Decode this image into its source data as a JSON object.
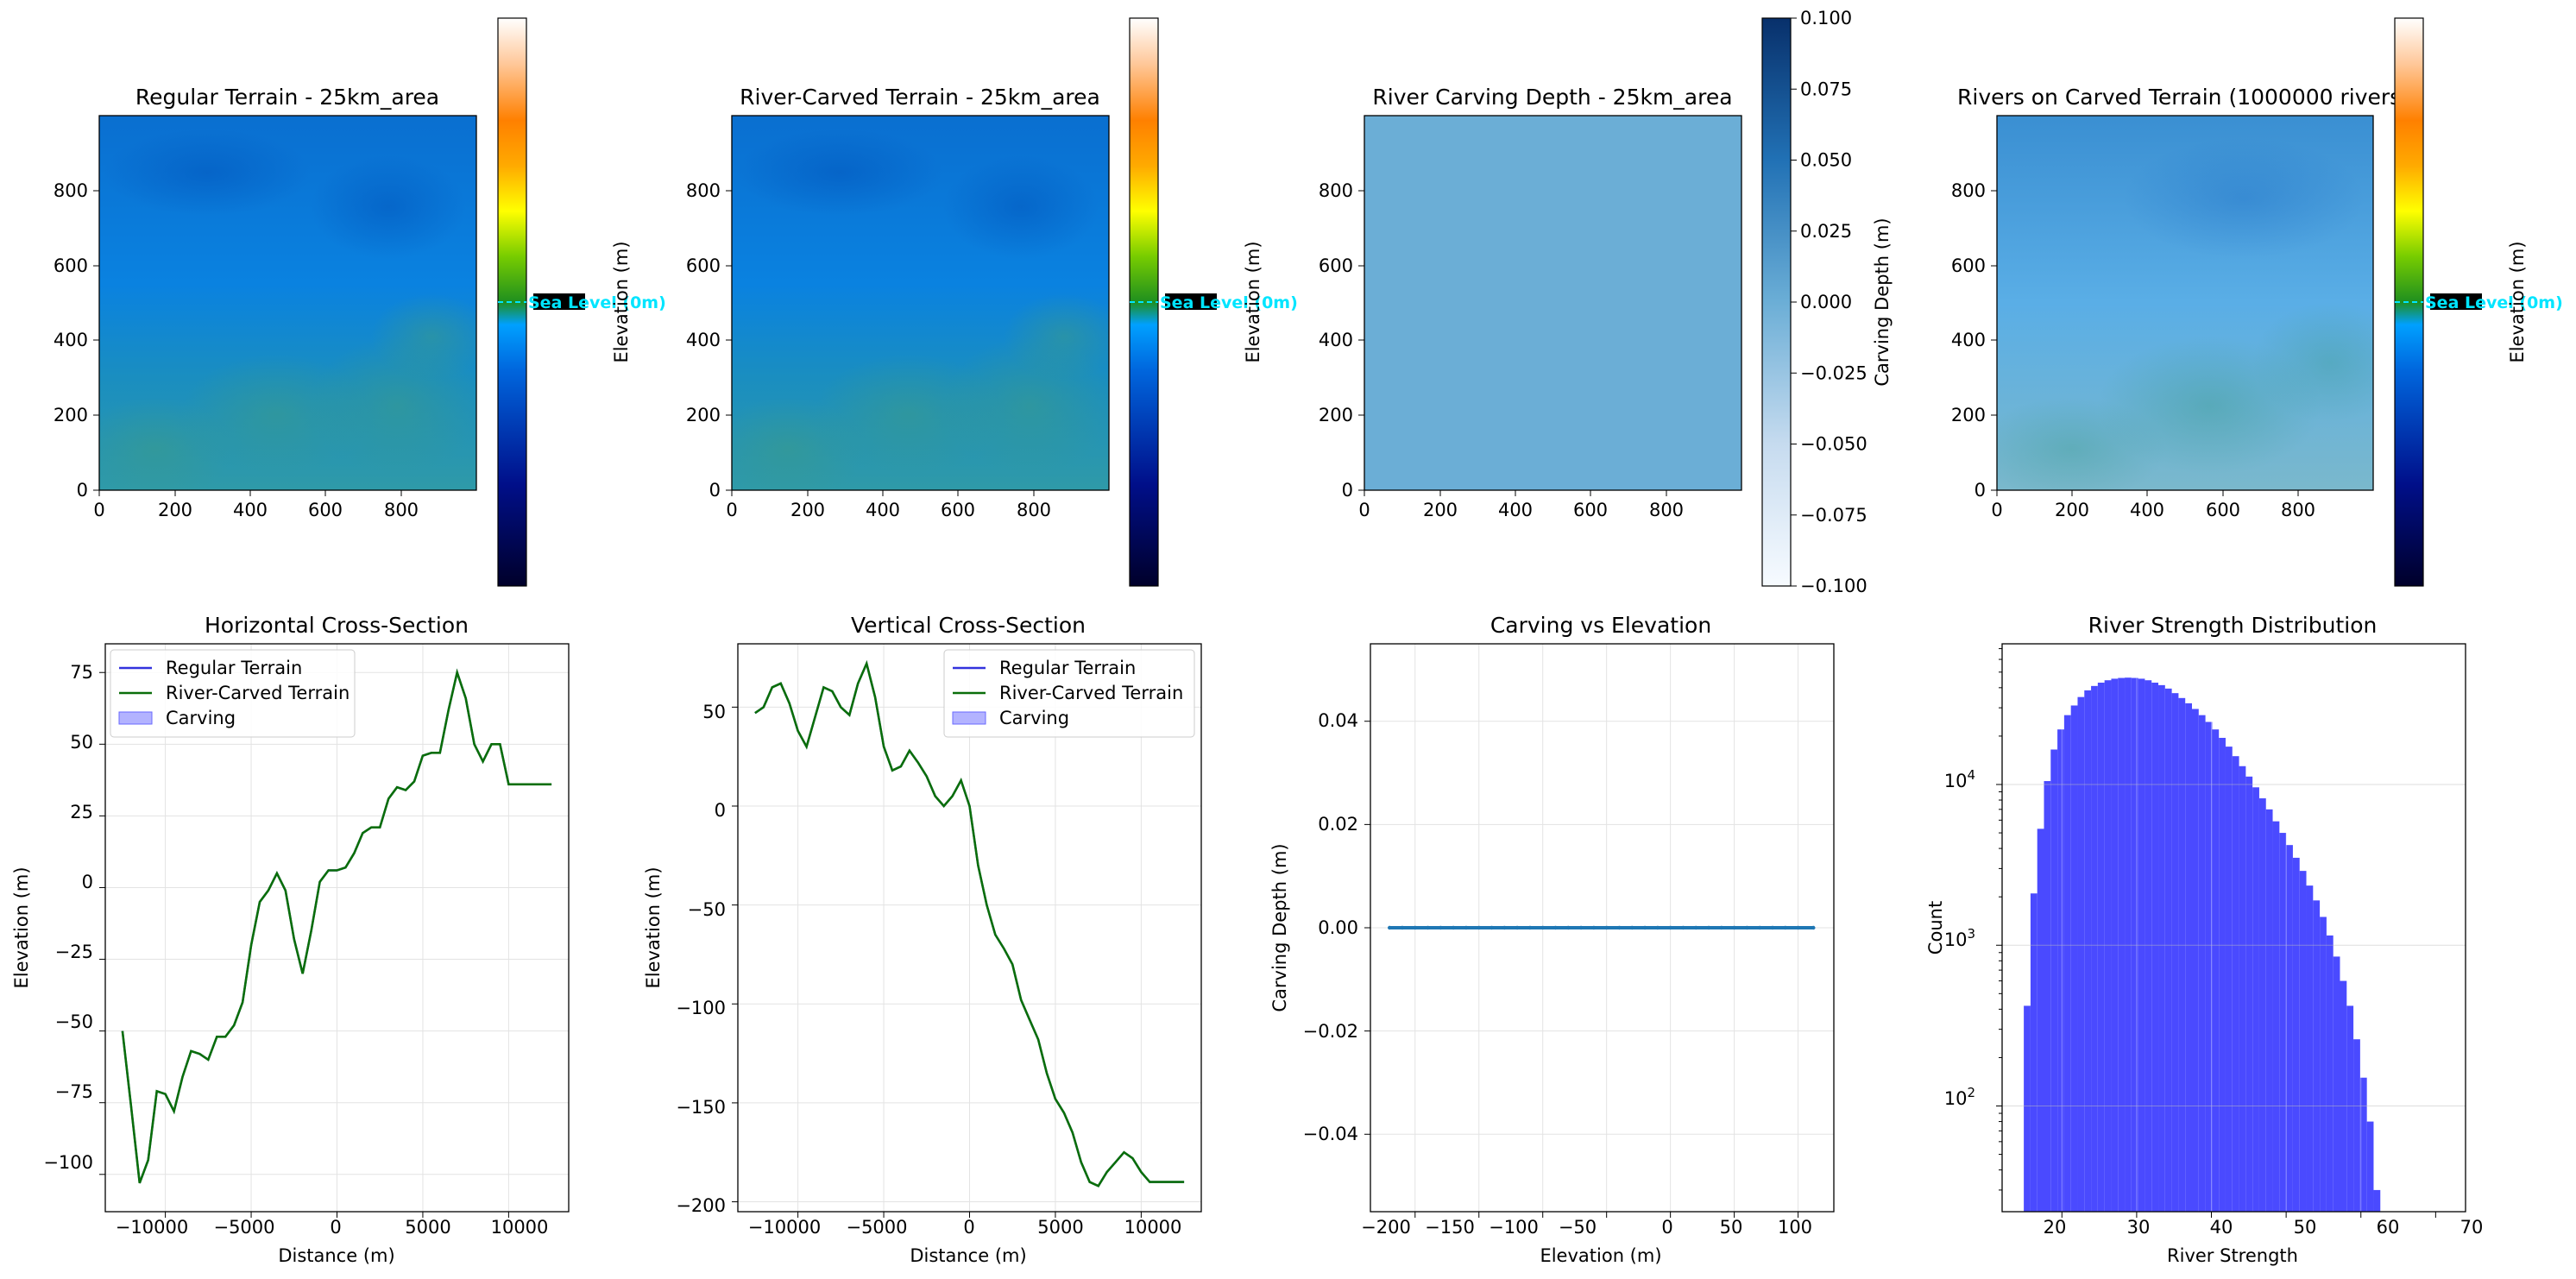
{
  "figure": {
    "background": "#ffffff"
  },
  "panels": {
    "regular_terrain": {
      "title": "Regular Terrain - 25km_area",
      "x_ticks": [
        "0",
        "200",
        "400",
        "600",
        "800"
      ],
      "y_ticks": [
        "0",
        "200",
        "400",
        "600",
        "800"
      ],
      "colorbar_label": "Elevation (m)",
      "sea_level_label": "Sea Level (0m)",
      "colors": {
        "top": "#0a6fd0",
        "bottom": "#2f9aa8"
      }
    },
    "river_carved_terrain": {
      "title": "River-Carved Terrain - 25km_area",
      "x_ticks": [
        "0",
        "200",
        "400",
        "600",
        "800"
      ],
      "y_ticks": [
        "0",
        "200",
        "400",
        "600",
        "800"
      ],
      "colorbar_label": "Elevation (m)",
      "sea_level_label": "Sea Level (0m)",
      "colors": {
        "top": "#0a6fd0",
        "bottom": "#2f9aa8"
      }
    },
    "carving_depth": {
      "title": "River Carving Depth - 25km_area",
      "x_ticks": [
        "0",
        "200",
        "400",
        "600",
        "800"
      ],
      "y_ticks": [
        "0",
        "200",
        "400",
        "600",
        "800"
      ],
      "colorbar_label": "Carving Depth (m)",
      "colorbar_ticks": [
        "0.100",
        "0.075",
        "0.050",
        "0.025",
        "0.000",
        "−0.025",
        "−0.050",
        "−0.075",
        "−0.100"
      ],
      "colors": {
        "fill": "#6baed6",
        "cmap_top": "#08306b",
        "cmap_bottom": "#f7fbff"
      }
    },
    "rivers_on_carved": {
      "title": "Rivers on Carved Terrain (1000000 rivers",
      "x_ticks": [
        "0",
        "200",
        "400",
        "600",
        "800"
      ],
      "y_ticks": [
        "0",
        "200",
        "400",
        "600",
        "800"
      ],
      "colorbar_label": "Elevation (m)",
      "sea_level_label": "Sea Level (0m)",
      "colors": {
        "top": "#3a8fd2",
        "bottom": "#7ab8cc"
      }
    },
    "horizontal_cross_section": {
      "title": "Horizontal Cross-Section",
      "xlabel": "Distance (m)",
      "ylabel": "Elevation (m)",
      "x_ticks": [
        "−10000",
        "−5000",
        "0",
        "5000",
        "10000"
      ],
      "y_ticks": [
        "75",
        "50",
        "25",
        "0",
        "−25",
        "−50",
        "−75",
        "−100"
      ],
      "legend": [
        "Regular Terrain",
        "River-Carved Terrain",
        "Carving"
      ]
    },
    "vertical_cross_section": {
      "title": "Vertical Cross-Section",
      "xlabel": "Distance (m)",
      "ylabel": "Elevation (m)",
      "x_ticks": [
        "−10000",
        "−5000",
        "0",
        "5000",
        "10000"
      ],
      "y_ticks": [
        "50",
        "0",
        "−50",
        "−100",
        "−150",
        "−200"
      ],
      "legend": [
        "Regular Terrain",
        "River-Carved Terrain",
        "Carving"
      ]
    },
    "carving_vs_elevation": {
      "title": "Carving vs Elevation",
      "xlabel": "Elevation (m)",
      "ylabel": "Carving Depth (m)",
      "x_ticks": [
        "−200",
        "−150",
        "−100",
        "−50",
        "0",
        "50",
        "100"
      ],
      "y_ticks": [
        "0.04",
        "0.02",
        "0.00",
        "−0.02",
        "−0.04"
      ]
    },
    "river_strength": {
      "title": "River Strength Distribution",
      "xlabel": "River Strength",
      "ylabel": "Count",
      "x_ticks": [
        "20",
        "30",
        "40",
        "50",
        "60",
        "70"
      ],
      "y_ticks": [
        "10",
        "10",
        "10"
      ],
      "y_tick_exponents": [
        "4",
        "3",
        "2"
      ]
    }
  },
  "colors": {
    "regular_line": "#3333dd",
    "carved_line": "#0a6e0a",
    "carving_fill": "#b3b3ff",
    "scatter": "#1f77b4",
    "histogram": "#4a4aff",
    "sea_level": "#00e5ff",
    "grid": "#e3e3e3"
  },
  "chart_data": [
    {
      "type": "heatmap",
      "title": "Regular Terrain - 25km_area",
      "xlim": [
        0,
        1000
      ],
      "ylim": [
        0,
        1000
      ],
      "colorbar": {
        "label": "Elevation (m)",
        "annotation": "Sea Level (0m)"
      }
    },
    {
      "type": "heatmap",
      "title": "River-Carved Terrain - 25km_area",
      "xlim": [
        0,
        1000
      ],
      "ylim": [
        0,
        1000
      ],
      "colorbar": {
        "label": "Elevation (m)",
        "annotation": "Sea Level (0m)"
      }
    },
    {
      "type": "heatmap",
      "title": "River Carving Depth - 25km_area",
      "xlim": [
        0,
        1000
      ],
      "ylim": [
        0,
        1000
      ],
      "uniform_value": 0.0,
      "colorbar": {
        "label": "Carving Depth (m)",
        "range": [
          -0.1,
          0.1
        ]
      }
    },
    {
      "type": "heatmap",
      "title": "Rivers on Carved Terrain (1000000 rivers",
      "xlim": [
        0,
        1000
      ],
      "ylim": [
        0,
        1000
      ],
      "colorbar": {
        "label": "Elevation (m)",
        "annotation": "Sea Level (0m)"
      }
    },
    {
      "type": "line",
      "title": "Horizontal Cross-Section",
      "xlabel": "Distance (m)",
      "ylabel": "Elevation (m)",
      "xlim": [
        -13500,
        13500
      ],
      "ylim": [
        -113,
        85
      ],
      "legend_position": "top-left",
      "x": [
        -12500,
        -12000,
        -11500,
        -11000,
        -10500,
        -10000,
        -9500,
        -9000,
        -8500,
        -8000,
        -7500,
        -7000,
        -6500,
        -6000,
        -5500,
        -5000,
        -4500,
        -4000,
        -3500,
        -3000,
        -2500,
        -2000,
        -1500,
        -1000,
        -500,
        0,
        500,
        1000,
        1500,
        2000,
        2500,
        3000,
        3500,
        4000,
        4500,
        5000,
        5500,
        6000,
        6500,
        7000,
        7500,
        8000,
        8500,
        9000,
        9500,
        10000,
        10500,
        11000,
        11500,
        12000,
        12500
      ],
      "series": [
        {
          "name": "Regular Terrain",
          "values": [
            -50,
            -76,
            -103,
            -95,
            -71,
            -72,
            -78,
            -66,
            -57,
            -58,
            -60,
            -52,
            -52,
            -48,
            -40,
            -20,
            -5,
            -1,
            5,
            -1,
            -18,
            -30,
            -15,
            2,
            6,
            6,
            7,
            12,
            19,
            21,
            21,
            31,
            35,
            34,
            37,
            46,
            47,
            47,
            62,
            75,
            66,
            50,
            44,
            50,
            50,
            36,
            36,
            36,
            36,
            36,
            36
          ]
        },
        {
          "name": "River-Carved Terrain",
          "values": [
            -50,
            -76,
            -103,
            -95,
            -71,
            -72,
            -78,
            -66,
            -57,
            -58,
            -60,
            -52,
            -52,
            -48,
            -40,
            -20,
            -5,
            -1,
            5,
            -1,
            -18,
            -30,
            -15,
            2,
            6,
            6,
            7,
            12,
            19,
            21,
            21,
            31,
            35,
            34,
            37,
            46,
            47,
            47,
            62,
            75,
            66,
            50,
            44,
            50,
            50,
            36,
            36,
            36,
            36,
            36,
            36
          ]
        },
        {
          "name": "Carving",
          "values": [
            0,
            0,
            0,
            0,
            0,
            0,
            0,
            0,
            0,
            0,
            0,
            0,
            0,
            0,
            0,
            0,
            0,
            0,
            0,
            0,
            0,
            0,
            0,
            0,
            0,
            0,
            0,
            0,
            0,
            0,
            0,
            0,
            0,
            0,
            0,
            0,
            0,
            0,
            0,
            0,
            0,
            0,
            0,
            0,
            0,
            0,
            0,
            0,
            0,
            0,
            0
          ]
        }
      ]
    },
    {
      "type": "line",
      "title": "Vertical Cross-Section",
      "xlabel": "Distance (m)",
      "ylabel": "Elevation (m)",
      "xlim": [
        -13500,
        13500
      ],
      "ylim": [
        -205,
        82
      ],
      "legend_position": "top-right",
      "x": [
        -12500,
        -12000,
        -11500,
        -11000,
        -10500,
        -10000,
        -9500,
        -9000,
        -8500,
        -8000,
        -7500,
        -7000,
        -6500,
        -6000,
        -5500,
        -5000,
        -4500,
        -4000,
        -3500,
        -3000,
        -2500,
        -2000,
        -1500,
        -1000,
        -500,
        0,
        500,
        1000,
        1500,
        2000,
        2500,
        3000,
        3500,
        4000,
        4500,
        5000,
        5500,
        6000,
        6500,
        7000,
        7500,
        8000,
        8500,
        9000,
        9500,
        10000,
        10500,
        11000,
        11500,
        12000,
        12500
      ],
      "series": [
        {
          "name": "Regular Terrain",
          "values": [
            47,
            50,
            60,
            62,
            52,
            38,
            30,
            45,
            60,
            58,
            50,
            46,
            62,
            72,
            55,
            30,
            18,
            20,
            28,
            22,
            15,
            5,
            0,
            5,
            13,
            0,
            -30,
            -50,
            -65,
            -72,
            -80,
            -98,
            -108,
            -118,
            -135,
            -148,
            -155,
            -165,
            -180,
            -190,
            -192,
            -185,
            -180,
            -175,
            -178,
            -185,
            -190,
            -190,
            -190,
            -190,
            -190
          ]
        },
        {
          "name": "River-Carved Terrain",
          "values": [
            47,
            50,
            60,
            62,
            52,
            38,
            30,
            45,
            60,
            58,
            50,
            46,
            62,
            72,
            55,
            30,
            18,
            20,
            28,
            22,
            15,
            5,
            0,
            5,
            13,
            0,
            -30,
            -50,
            -65,
            -72,
            -80,
            -98,
            -108,
            -118,
            -135,
            -148,
            -155,
            -165,
            -180,
            -190,
            -192,
            -185,
            -180,
            -175,
            -178,
            -185,
            -190,
            -190,
            -190,
            -190,
            -190
          ]
        },
        {
          "name": "Carving",
          "values": [
            0,
            0,
            0,
            0,
            0,
            0,
            0,
            0,
            0,
            0,
            0,
            0,
            0,
            0,
            0,
            0,
            0,
            0,
            0,
            0,
            0,
            0,
            0,
            0,
            0,
            0,
            0,
            0,
            0,
            0,
            0,
            0,
            0,
            0,
            0,
            0,
            0,
            0,
            0,
            0,
            0,
            0,
            0,
            0,
            0,
            0,
            0,
            0,
            0,
            0,
            0
          ]
        }
      ]
    },
    {
      "type": "scatter",
      "title": "Carving vs Elevation",
      "xlabel": "Elevation (m)",
      "ylabel": "Carving Depth (m)",
      "xlim": [
        -235,
        128
      ],
      "ylim": [
        -0.055,
        0.055
      ],
      "x": [
        -220,
        -210,
        -200,
        -190,
        -180,
        -170,
        -160,
        -150,
        -140,
        -130,
        -120,
        -110,
        -100,
        -90,
        -80,
        -70,
        -60,
        -50,
        -40,
        -30,
        -20,
        -10,
        0,
        10,
        20,
        30,
        40,
        50,
        60,
        70,
        80,
        90,
        100,
        112
      ],
      "y": [
        0,
        0,
        0,
        0,
        0,
        0,
        0,
        0,
        0,
        0,
        0,
        0,
        0,
        0,
        0,
        0,
        0,
        0,
        0,
        0,
        0,
        0,
        0,
        0,
        0,
        0,
        0,
        0,
        0,
        0,
        0,
        0,
        0,
        0
      ]
    },
    {
      "type": "bar",
      "title": "River Strength Distribution",
      "xlabel": "River Strength",
      "ylabel": "Count",
      "yscale": "log",
      "xlim": [
        12,
        74
      ],
      "ylim": [
        22,
        75000
      ],
      "bin_edges_start": 14.9,
      "bin_width": 0.9,
      "values": [
        420,
        2100,
        5300,
        10500,
        16500,
        22000,
        27000,
        31000,
        35000,
        38500,
        41000,
        43000,
        44500,
        45500,
        46000,
        46200,
        46000,
        45500,
        44500,
        43000,
        41500,
        39500,
        37000,
        34500,
        32000,
        29500,
        27000,
        24500,
        22000,
        19500,
        17200,
        15000,
        13000,
        11200,
        9600,
        8200,
        7000,
        5900,
        5000,
        4200,
        3500,
        2900,
        2350,
        1900,
        1500,
        1150,
        850,
        600,
        420,
        260,
        150,
        80,
        30
      ]
    }
  ]
}
